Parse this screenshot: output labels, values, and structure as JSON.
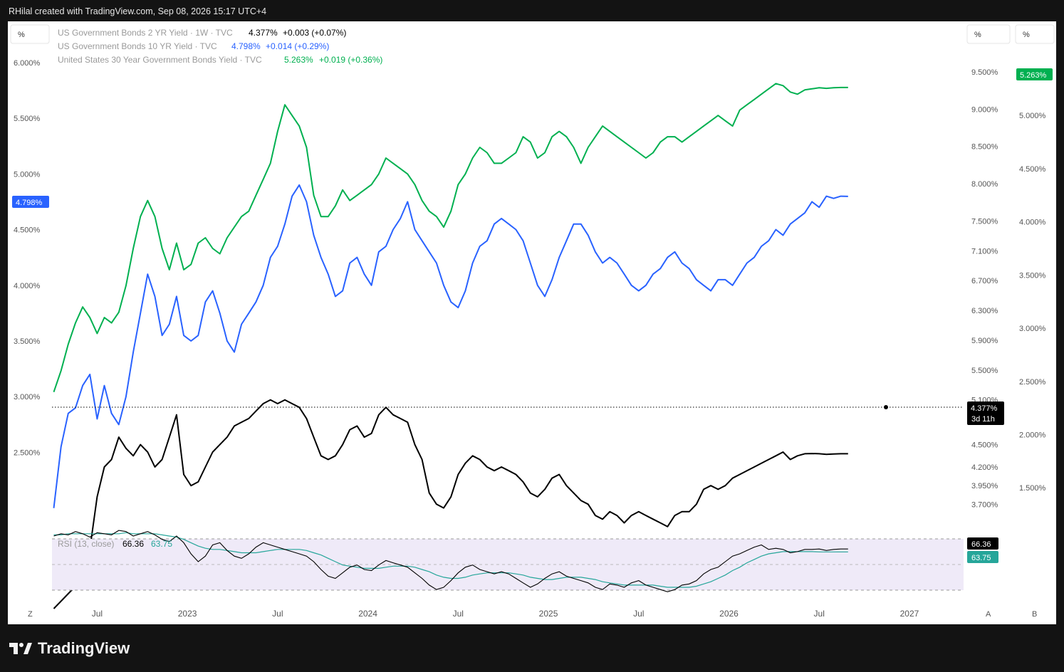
{
  "header": {
    "credit": "RHilal created with TradingView.com, Sep 08, 2026 15:17 UTC+4"
  },
  "toolbar": {
    "left_scale_button": "%",
    "right_scale_button_1": "%",
    "right_scale_button_2": "%",
    "bottom_left": "Z",
    "bottom_auto": "A",
    "bottom_b": "B"
  },
  "legend": [
    {
      "name": "US Government Bonds 2 YR Yield · 1W · TVC",
      "value": "4.377%",
      "change": "+0.003 (+0.07%)",
      "color": "#000000"
    },
    {
      "name": "US Government Bonds 10 YR Yield · TVC",
      "value": "4.798%",
      "change": "+0.014 (+0.29%)",
      "color": "#2962ff"
    },
    {
      "name": "United States 30 Year Government Bonds Yield · TVC",
      "value": "5.263%",
      "change": "+0.019 (+0.36%)",
      "color": "#00b050"
    }
  ],
  "rsi": {
    "label": "RSI (13, close)",
    "value": "66.36",
    "ma_value": "63.75",
    "line_color": "#000000",
    "ma_color": "#26a69a"
  },
  "price_tags": {
    "ten_year": "4.798%",
    "thirty_year": "5.263%",
    "two_year": "4.377%",
    "countdown": "3d 11h",
    "rsi_value": "66.36",
    "rsi_ma": "63.75"
  },
  "branding": {
    "logo_text": "TradingView"
  },
  "chart_data": {
    "type": "line",
    "x_ticks": [
      "Jul",
      "2023",
      "Jul",
      "2024",
      "Jul",
      "2025",
      "Jul",
      "2026",
      "Jul",
      "2027"
    ],
    "left_axis": {
      "series": "US Government Bonds 10 YR Yield",
      "ticks": [
        "2.500%",
        "3.000%",
        "3.500%",
        "4.000%",
        "4.500%",
        "5.000%",
        "5.500%",
        "6.000%"
      ],
      "range": [
        2.0,
        6.0
      ]
    },
    "right_axis_1": {
      "series": "US Government Bonds 2 YR Yield",
      "ticks": [
        "3.700%",
        "3.950%",
        "4.200%",
        "4.500%",
        "4.800%",
        "5.100%",
        "5.500%",
        "5.900%",
        "6.300%",
        "6.700%",
        "7.100%",
        "7.500%",
        "8.000%",
        "8.500%",
        "9.000%",
        "9.500%"
      ]
    },
    "right_axis_2": {
      "series": "United States 30 Year Government Bonds Yield",
      "ticks": [
        "1.500%",
        "2.000%",
        "2.500%",
        "3.000%",
        "3.500%",
        "4.000%",
        "4.500%",
        "5.000%"
      ]
    },
    "series": [
      {
        "name": "US Government Bonds 10 YR Yield",
        "color": "#2962ff",
        "axis": "left",
        "x": [
          2022.26,
          2022.3,
          2022.34,
          2022.38,
          2022.42,
          2022.46,
          2022.5,
          2022.54,
          2022.58,
          2022.62,
          2022.66,
          2022.7,
          2022.74,
          2022.78,
          2022.82,
          2022.86,
          2022.9,
          2022.94,
          2022.98,
          2023.02,
          2023.06,
          2023.1,
          2023.14,
          2023.18,
          2023.22,
          2023.26,
          2023.3,
          2023.34,
          2023.38,
          2023.42,
          2023.46,
          2023.5,
          2023.54,
          2023.58,
          2023.62,
          2023.66,
          2023.7,
          2023.74,
          2023.78,
          2023.82,
          2023.86,
          2023.9,
          2023.94,
          2023.98,
          2024.02,
          2024.06,
          2024.1,
          2024.14,
          2024.18,
          2024.22,
          2024.26,
          2024.3,
          2024.34,
          2024.38,
          2024.42,
          2024.46,
          2024.5,
          2024.54,
          2024.58,
          2024.62,
          2024.66,
          2024.7,
          2024.74,
          2024.78,
          2024.82,
          2024.86,
          2024.9,
          2024.94,
          2024.98,
          2025.02,
          2025.06,
          2025.1,
          2025.14,
          2025.18,
          2025.22,
          2025.26,
          2025.3,
          2025.34,
          2025.38,
          2025.42,
          2025.46,
          2025.5,
          2025.54,
          2025.58,
          2025.62,
          2025.66,
          2025.7,
          2025.74,
          2025.78,
          2025.82,
          2025.86,
          2025.9,
          2025.94,
          2025.98,
          2026.02,
          2026.06,
          2026.1,
          2026.14,
          2026.18,
          2026.22,
          2026.26,
          2026.3,
          2026.34,
          2026.38,
          2026.42,
          2026.46,
          2026.5,
          2026.54,
          2026.58,
          2026.62,
          2026.66
        ],
        "values": [
          2.0,
          2.55,
          2.85,
          2.9,
          3.1,
          3.2,
          2.8,
          3.1,
          2.85,
          2.75,
          3.0,
          3.4,
          3.75,
          4.1,
          3.9,
          3.55,
          3.65,
          3.9,
          3.55,
          3.5,
          3.55,
          3.85,
          3.95,
          3.75,
          3.5,
          3.4,
          3.65,
          3.75,
          3.85,
          4.0,
          4.25,
          4.35,
          4.55,
          4.8,
          4.9,
          4.75,
          4.45,
          4.25,
          4.1,
          3.9,
          3.95,
          4.2,
          4.25,
          4.1,
          4.0,
          4.3,
          4.35,
          4.5,
          4.6,
          4.75,
          4.5,
          4.4,
          4.3,
          4.2,
          4.0,
          3.85,
          3.8,
          3.95,
          4.2,
          4.35,
          4.4,
          4.55,
          4.6,
          4.55,
          4.5,
          4.4,
          4.2,
          4.0,
          3.9,
          4.05,
          4.25,
          4.4,
          4.55,
          4.55,
          4.45,
          4.3,
          4.2,
          4.25,
          4.2,
          4.1,
          4.0,
          3.95,
          4.0,
          4.1,
          4.15,
          4.25,
          4.3,
          4.2,
          4.15,
          4.05,
          4.0,
          3.95,
          4.05,
          4.05,
          4.0,
          4.1,
          4.2,
          4.25,
          4.35,
          4.4,
          4.5,
          4.45,
          4.55,
          4.6,
          4.65,
          4.75,
          4.7,
          4.8,
          4.78,
          4.8,
          4.798
        ]
      },
      {
        "name": "US Government Bonds 2 YR Yield",
        "color": "#000000",
        "axis": "right_1",
        "x": [
          2022.26,
          2022.3,
          2022.34,
          2022.38,
          2022.42,
          2022.46,
          2022.5,
          2022.54,
          2022.58,
          2022.62,
          2022.66,
          2022.7,
          2022.74,
          2022.78,
          2022.82,
          2022.86,
          2022.9,
          2022.94,
          2022.98,
          2023.02,
          2023.06,
          2023.1,
          2023.14,
          2023.18,
          2023.22,
          2023.26,
          2023.3,
          2023.34,
          2023.38,
          2023.42,
          2023.46,
          2023.5,
          2023.54,
          2023.58,
          2023.62,
          2023.66,
          2023.7,
          2023.74,
          2023.78,
          2023.82,
          2023.86,
          2023.9,
          2023.94,
          2023.98,
          2024.02,
          2024.06,
          2024.1,
          2024.14,
          2024.18,
          2024.22,
          2024.26,
          2024.3,
          2024.34,
          2024.38,
          2024.42,
          2024.46,
          2024.5,
          2024.54,
          2024.58,
          2024.62,
          2024.66,
          2024.7,
          2024.74,
          2024.78,
          2024.82,
          2024.86,
          2024.9,
          2024.94,
          2024.98,
          2025.02,
          2025.06,
          2025.1,
          2025.14,
          2025.18,
          2025.22,
          2025.26,
          2025.3,
          2025.34,
          2025.38,
          2025.42,
          2025.46,
          2025.5,
          2025.54,
          2025.58,
          2025.62,
          2025.66,
          2025.7,
          2025.74,
          2025.78,
          2025.82,
          2025.86,
          2025.9,
          2025.94,
          2025.98,
          2026.02,
          2026.06,
          2026.1,
          2026.14,
          2026.18,
          2026.22,
          2026.26,
          2026.3,
          2026.34,
          2026.38,
          2026.42,
          2026.46,
          2026.5,
          2026.54,
          2026.58,
          2026.62,
          2026.66
        ],
        "values": [
          2.3,
          2.4,
          2.5,
          2.6,
          2.8,
          3.1,
          3.8,
          4.2,
          4.3,
          4.6,
          4.45,
          4.35,
          4.5,
          4.4,
          4.2,
          4.3,
          4.6,
          4.9,
          4.1,
          3.95,
          4.0,
          4.2,
          4.4,
          4.5,
          4.6,
          4.75,
          4.8,
          4.85,
          4.95,
          5.05,
          5.1,
          5.05,
          5.1,
          5.05,
          5.0,
          4.85,
          4.6,
          4.35,
          4.3,
          4.35,
          4.5,
          4.7,
          4.75,
          4.6,
          4.65,
          4.9,
          5.0,
          4.9,
          4.85,
          4.8,
          4.5,
          4.3,
          3.85,
          3.7,
          3.65,
          3.8,
          4.1,
          4.25,
          4.35,
          4.3,
          4.2,
          4.15,
          4.2,
          4.15,
          4.1,
          4.0,
          3.85,
          3.8,
          3.9,
          4.05,
          4.1,
          3.95,
          3.85,
          3.75,
          3.7,
          3.55,
          3.5,
          3.6,
          3.55,
          3.45,
          3.55,
          3.6,
          3.55,
          3.5,
          3.45,
          3.4,
          3.55,
          3.6,
          3.6,
          3.7,
          3.9,
          3.95,
          3.9,
          3.95,
          4.05,
          4.1,
          4.15,
          4.2,
          4.25,
          4.3,
          4.35,
          4.4,
          4.3,
          4.35,
          4.377,
          4.38,
          4.377,
          4.37,
          4.375,
          4.377,
          4.377
        ]
      },
      {
        "name": "United States 30 Year Government Bonds Yield",
        "color": "#00b050",
        "axis": "right_2",
        "x": [
          2022.26,
          2022.3,
          2022.34,
          2022.38,
          2022.42,
          2022.46,
          2022.5,
          2022.54,
          2022.58,
          2022.62,
          2022.66,
          2022.7,
          2022.74,
          2022.78,
          2022.82,
          2022.86,
          2022.9,
          2022.94,
          2022.98,
          2023.02,
          2023.06,
          2023.1,
          2023.14,
          2023.18,
          2023.22,
          2023.26,
          2023.3,
          2023.34,
          2023.38,
          2023.42,
          2023.46,
          2023.5,
          2023.54,
          2023.58,
          2023.62,
          2023.66,
          2023.7,
          2023.74,
          2023.78,
          2023.82,
          2023.86,
          2023.9,
          2023.94,
          2023.98,
          2024.02,
          2024.06,
          2024.1,
          2024.14,
          2024.18,
          2024.22,
          2024.26,
          2024.3,
          2024.34,
          2024.38,
          2024.42,
          2024.46,
          2024.5,
          2024.54,
          2024.58,
          2024.62,
          2024.66,
          2024.7,
          2024.74,
          2024.78,
          2024.82,
          2024.86,
          2024.9,
          2024.94,
          2024.98,
          2025.02,
          2025.06,
          2025.1,
          2025.14,
          2025.18,
          2025.22,
          2025.26,
          2025.3,
          2025.34,
          2025.38,
          2025.42,
          2025.46,
          2025.5,
          2025.54,
          2025.58,
          2025.62,
          2025.66,
          2025.7,
          2025.74,
          2025.78,
          2025.82,
          2025.86,
          2025.9,
          2025.94,
          2025.98,
          2026.02,
          2026.06,
          2026.1,
          2026.14,
          2026.18,
          2026.22,
          2026.26,
          2026.3,
          2026.34,
          2026.38,
          2026.42,
          2026.46,
          2026.5,
          2026.54,
          2026.58,
          2026.62,
          2026.66
        ],
        "values": [
          2.4,
          2.6,
          2.85,
          3.05,
          3.2,
          3.1,
          2.95,
          3.1,
          3.05,
          3.15,
          3.4,
          3.75,
          4.05,
          4.2,
          4.05,
          3.75,
          3.55,
          3.8,
          3.55,
          3.6,
          3.8,
          3.85,
          3.75,
          3.7,
          3.85,
          3.95,
          4.05,
          4.1,
          4.25,
          4.4,
          4.55,
          4.85,
          5.1,
          5.0,
          4.9,
          4.7,
          4.25,
          4.05,
          4.05,
          4.15,
          4.3,
          4.2,
          4.25,
          4.3,
          4.35,
          4.45,
          4.6,
          4.55,
          4.5,
          4.45,
          4.35,
          4.2,
          4.1,
          4.05,
          3.95,
          4.1,
          4.35,
          4.45,
          4.6,
          4.7,
          4.65,
          4.55,
          4.55,
          4.6,
          4.65,
          4.8,
          4.75,
          4.6,
          4.65,
          4.8,
          4.85,
          4.8,
          4.7,
          4.55,
          4.7,
          4.8,
          4.9,
          4.85,
          4.8,
          4.75,
          4.7,
          4.65,
          4.6,
          4.65,
          4.75,
          4.8,
          4.8,
          4.75,
          4.8,
          4.85,
          4.9,
          4.95,
          5.0,
          4.95,
          4.9,
          5.05,
          5.1,
          5.15,
          5.2,
          5.25,
          5.3,
          5.28,
          5.22,
          5.2,
          5.24,
          5.25,
          5.26,
          5.255,
          5.26,
          5.263,
          5.263
        ]
      }
    ],
    "rsi_series": {
      "name": "RSI (13, close)",
      "x": [
        2022.26,
        2022.3,
        2022.34,
        2022.38,
        2022.42,
        2022.46,
        2022.5,
        2022.54,
        2022.58,
        2022.62,
        2022.66,
        2022.7,
        2022.74,
        2022.78,
        2022.82,
        2022.86,
        2022.9,
        2022.94,
        2022.98,
        2023.02,
        2023.06,
        2023.1,
        2023.14,
        2023.18,
        2023.22,
        2023.26,
        2023.3,
        2023.34,
        2023.38,
        2023.42,
        2023.46,
        2023.5,
        2023.54,
        2023.58,
        2023.62,
        2023.66,
        2023.7,
        2023.74,
        2023.78,
        2023.82,
        2023.86,
        2023.9,
        2023.94,
        2023.98,
        2024.02,
        2024.06,
        2024.1,
        2024.14,
        2024.18,
        2024.22,
        2024.26,
        2024.3,
        2024.34,
        2024.38,
        2024.42,
        2024.46,
        2024.5,
        2024.54,
        2024.58,
        2024.62,
        2024.66,
        2024.7,
        2024.74,
        2024.78,
        2024.82,
        2024.86,
        2024.9,
        2024.94,
        2024.98,
        2025.02,
        2025.06,
        2025.1,
        2025.14,
        2025.18,
        2025.22,
        2025.26,
        2025.3,
        2025.34,
        2025.38,
        2025.42,
        2025.46,
        2025.5,
        2025.54,
        2025.58,
        2025.62,
        2025.66,
        2025.7,
        2025.74,
        2025.78,
        2025.82,
        2025.86,
        2025.9,
        2025.94,
        2025.98,
        2026.02,
        2026.06,
        2026.1,
        2026.14,
        2026.18,
        2026.22,
        2026.26,
        2026.3,
        2026.34,
        2026.38,
        2026.42,
        2026.46,
        2026.5,
        2026.54,
        2026.58,
        2026.62,
        2026.66
      ],
      "values": [
        78,
        80,
        79,
        82,
        80,
        77,
        81,
        80,
        79,
        83,
        82,
        78,
        80,
        82,
        79,
        75,
        73,
        78,
        72,
        62,
        55,
        60,
        70,
        72,
        65,
        60,
        58,
        62,
        68,
        72,
        70,
        68,
        66,
        64,
        62,
        60,
        55,
        48,
        42,
        40,
        45,
        50,
        52,
        48,
        47,
        52,
        56,
        54,
        52,
        50,
        45,
        40,
        34,
        30,
        32,
        38,
        45,
        50,
        52,
        48,
        46,
        44,
        46,
        44,
        40,
        36,
        32,
        35,
        40,
        44,
        46,
        42,
        40,
        38,
        36,
        32,
        30,
        35,
        34,
        32,
        36,
        38,
        34,
        32,
        30,
        28,
        30,
        34,
        35,
        38,
        44,
        48,
        50,
        55,
        60,
        62,
        65,
        68,
        70,
        66,
        67,
        66,
        63,
        64,
        66,
        66,
        66.36,
        65,
        66,
        66.36,
        66.36
      ],
      "ma_name": "RSI-based MA",
      "ma_values": [
        79,
        79,
        80,
        80,
        80,
        80,
        80,
        80,
        80,
        80,
        81,
        80,
        80,
        80,
        80,
        79,
        78,
        77,
        75,
        72,
        69,
        67,
        66,
        66,
        65,
        64,
        63,
        63,
        63,
        64,
        65,
        66,
        66,
        66,
        66,
        65,
        63,
        61,
        58,
        55,
        52,
        51,
        50,
        49,
        49,
        49,
        50,
        51,
        51,
        51,
        50,
        48,
        46,
        43,
        41,
        40,
        40,
        41,
        43,
        44,
        45,
        45,
        45,
        45,
        44,
        43,
        41,
        40,
        39,
        39,
        40,
        41,
        41,
        41,
        40,
        39,
        37,
        36,
        35,
        34,
        34,
        34,
        34,
        34,
        33,
        32,
        32,
        32,
        32,
        33,
        35,
        37,
        40,
        43,
        47,
        50,
        54,
        57,
        60,
        62,
        63,
        64,
        64,
        64,
        64,
        64,
        63.75,
        63.75,
        63.75,
        63.75,
        63.75
      ],
      "levels": [
        70,
        50,
        30
      ]
    }
  }
}
